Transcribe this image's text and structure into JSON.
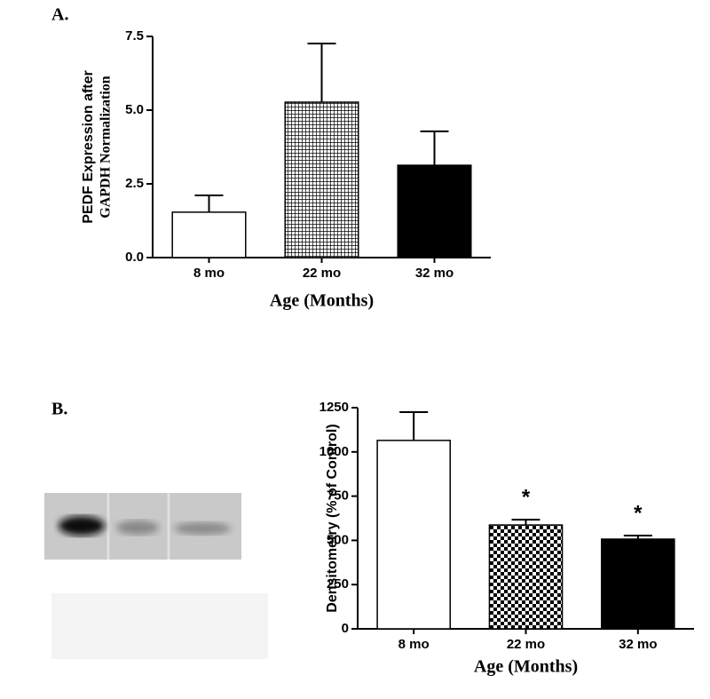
{
  "chart_data": [
    {
      "type": "bar",
      "label": "A.",
      "ylabel": [
        "PEDF Expression after",
        "GAPDH Normalization"
      ],
      "xlabel": "Age (Months)",
      "categories": [
        "8 mo",
        "22 mo",
        "32 mo"
      ],
      "values": [
        1.54,
        5.27,
        3.13
      ],
      "errors": [
        0.57,
        1.99,
        1.15
      ],
      "bar_styles": [
        "open",
        "grid",
        "solid"
      ],
      "color": "#000000",
      "ylim": [
        0,
        7.5
      ],
      "yticks": [
        {
          "value": 0,
          "label": "0.0"
        },
        2.5,
        {
          "value": 5,
          "label": "5.0"
        },
        7.5
      ]
    },
    {
      "type": "bar",
      "label": "B.",
      "ylabel": [
        "Densitometry (% of Control)"
      ],
      "xlabel": "Age (Months)",
      "categories": [
        "8 mo",
        "22 mo",
        "32 mo"
      ],
      "values": [
        1065,
        587,
        507
      ],
      "errors": [
        160,
        30,
        20
      ],
      "bar_styles": [
        "open",
        "checker",
        "solid"
      ],
      "color": "#000000",
      "annotations": [
        null,
        "*",
        "*"
      ],
      "ylim": [
        0,
        1250
      ],
      "yticks": [
        0,
        250,
        500,
        750,
        1000,
        1250
      ]
    }
  ]
}
